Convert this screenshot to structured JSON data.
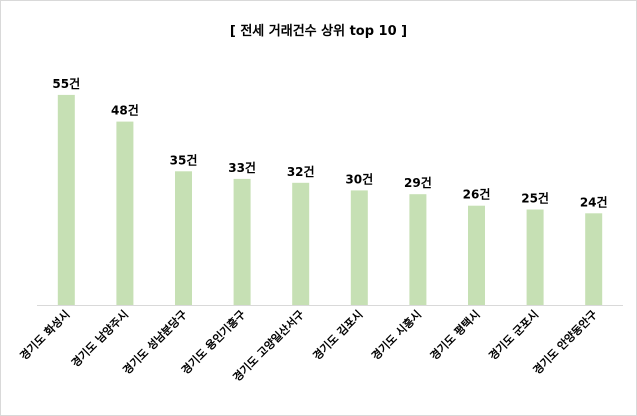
{
  "chart_data": {
    "type": "bar",
    "title": "[ 전세 거래건수 상위 top 10 ]",
    "xlabel": "",
    "ylabel": "",
    "ylim": [
      0,
      60
    ],
    "grid": false,
    "legend": "none",
    "categories": [
      "경기도 화성시",
      "경기도 남양주시",
      "경기도 성남분당구",
      "경기도 용인기흥구",
      "경기도 고양일산서구",
      "경기도 김포시",
      "경기도 시흥시",
      "경기도 평택시",
      "경기도 군포시",
      "경기도 안양동안구"
    ],
    "values": [
      55,
      48,
      35,
      33,
      32,
      30,
      29,
      26,
      25,
      24
    ],
    "data_labels": [
      "55건",
      "48건",
      "35건",
      "33건",
      "32건",
      "30건",
      "29건",
      "26건",
      "25건",
      "24건"
    ],
    "colors": {
      "bar": "#c6e0b4",
      "axis": "#d9d9d9",
      "text": "#000000"
    }
  }
}
